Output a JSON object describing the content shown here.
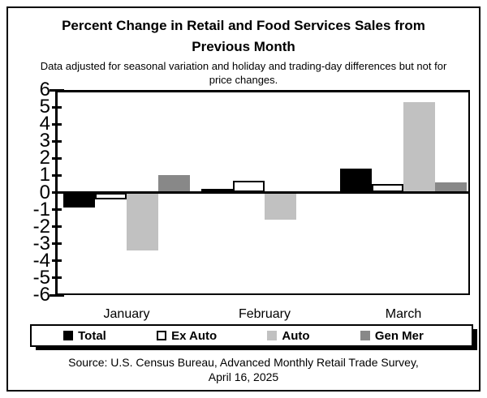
{
  "title": {
    "line1": "Percent Change in Retail and Food Services Sales from",
    "line2": "Previous Month"
  },
  "subtitle": {
    "line1": "Data adjusted for seasonal variation and holiday and trading-day differences but not for",
    "line2": "price changes."
  },
  "chart_data": {
    "type": "bar",
    "title": "Percent Change in Retail and Food Services Sales from Previous Month",
    "subtitle": "Data adjusted for seasonal variation and holiday and trading-day differences but not for price changes.",
    "categories": [
      "January",
      "February",
      "March"
    ],
    "series": [
      {
        "name": "Total",
        "color": "#000000",
        "border": "#000000",
        "values": [
          -0.9,
          0.2,
          1.4
        ]
      },
      {
        "name": "Ex Auto",
        "color": "#ffffff",
        "border": "#000000",
        "values": [
          -0.4,
          0.7,
          0.5
        ]
      },
      {
        "name": "Auto",
        "color": "#c1c1c1",
        "border": "#c1c1c1",
        "values": [
          -3.4,
          -1.6,
          5.3
        ]
      },
      {
        "name": "Gen Mer",
        "color": "#888888",
        "border": "#888888",
        "values": [
          1.0,
          0.0,
          0.6
        ]
      }
    ],
    "xlabel": "",
    "ylabel": "",
    "ylim": [
      -6,
      6
    ],
    "yticks": [
      6,
      5,
      4,
      3,
      2,
      1,
      0,
      -1,
      -2,
      -3,
      -4,
      -5,
      -6
    ],
    "grid": false,
    "legend_position": "bottom"
  },
  "footer": {
    "source_line1": "Source: U.S. Census Bureau, Advanced Monthly Retail Trade Survey,",
    "source_line2": "April 16, 2025"
  }
}
